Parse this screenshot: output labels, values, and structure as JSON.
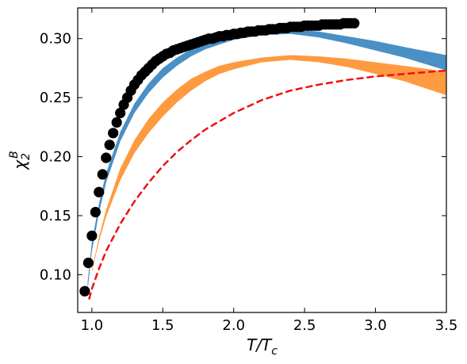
{
  "chart_data": {
    "type": "line",
    "xlabel_main": "T/T",
    "xlabel_sub": "c",
    "ylabel_main": "χ",
    "ylabel_sub": "2",
    "ylabel_sup": "B",
    "xlim": [
      0.9,
      3.5
    ],
    "ylim": [
      0.068,
      0.326
    ],
    "xticks": [
      1.0,
      1.5,
      2.0,
      2.5,
      3.0,
      3.5
    ],
    "xtick_labels": [
      "1.0",
      "1.5",
      "2.0",
      "2.5",
      "3.0",
      "3.5"
    ],
    "yticks": [
      0.1,
      0.15,
      0.2,
      0.25,
      0.3
    ],
    "ytick_labels": [
      "0.10",
      "0.15",
      "0.20",
      "0.25",
      "0.30"
    ],
    "grid": false,
    "colors": {
      "blue_band": "#4a90c4",
      "orange_band": "#ff9a40",
      "red_dashed": "#ee1111",
      "points": "#000000"
    },
    "series": [
      {
        "kind": "band",
        "color_key": "blue_band",
        "x": [
          0.97,
          1.0,
          1.05,
          1.1,
          1.2,
          1.3,
          1.4,
          1.5,
          1.6,
          1.7,
          1.8,
          1.9,
          2.0,
          2.2,
          2.4,
          2.6,
          2.8,
          3.0,
          3.2,
          3.5
        ],
        "lower": [
          0.087,
          0.12,
          0.152,
          0.178,
          0.213,
          0.237,
          0.254,
          0.267,
          0.277,
          0.285,
          0.291,
          0.295,
          0.299,
          0.303,
          0.304,
          0.301,
          0.296,
          0.29,
          0.284,
          0.273
        ],
        "upper": [
          0.094,
          0.128,
          0.16,
          0.186,
          0.221,
          0.245,
          0.262,
          0.275,
          0.284,
          0.291,
          0.296,
          0.3,
          0.303,
          0.306,
          0.308,
          0.306,
          0.302,
          0.298,
          0.293,
          0.286
        ]
      },
      {
        "kind": "band",
        "color_key": "orange_band",
        "x": [
          1.0,
          1.05,
          1.1,
          1.2,
          1.3,
          1.4,
          1.5,
          1.6,
          1.7,
          1.8,
          1.9,
          2.0,
          2.2,
          2.4,
          2.6,
          2.8,
          3.0,
          3.2,
          3.5
        ],
        "lower": [
          0.102,
          0.128,
          0.149,
          0.18,
          0.203,
          0.22,
          0.234,
          0.246,
          0.256,
          0.264,
          0.27,
          0.274,
          0.28,
          0.282,
          0.28,
          0.276,
          0.27,
          0.264,
          0.252
        ],
        "upper": [
          0.104,
          0.132,
          0.155,
          0.19,
          0.214,
          0.232,
          0.246,
          0.257,
          0.266,
          0.272,
          0.277,
          0.28,
          0.284,
          0.286,
          0.285,
          0.283,
          0.28,
          0.277,
          0.272
        ]
      },
      {
        "kind": "dashed",
        "color_key": "red_dashed",
        "x": [
          0.98,
          1.0,
          1.05,
          1.1,
          1.2,
          1.3,
          1.4,
          1.5,
          1.6,
          1.7,
          1.8,
          1.9,
          2.0,
          2.2,
          2.4,
          2.6,
          2.8,
          3.0,
          3.2,
          3.5
        ],
        "y": [
          0.079,
          0.088,
          0.105,
          0.12,
          0.143,
          0.162,
          0.178,
          0.192,
          0.204,
          0.214,
          0.223,
          0.23,
          0.237,
          0.248,
          0.256,
          0.261,
          0.265,
          0.268,
          0.27,
          0.273
        ]
      },
      {
        "kind": "points",
        "color_key": "points",
        "x": [
          0.95,
          0.975,
          1.0,
          1.025,
          1.05,
          1.075,
          1.1,
          1.125,
          1.15,
          1.175,
          1.2,
          1.225,
          1.25,
          1.275,
          1.3,
          1.325,
          1.35,
          1.375,
          1.4,
          1.425,
          1.45,
          1.475,
          1.5,
          1.525,
          1.55,
          1.575,
          1.6,
          1.625,
          1.65,
          1.675,
          1.7,
          1.725,
          1.75,
          1.775,
          1.8,
          1.825,
          1.85,
          1.875,
          1.9,
          1.925,
          1.95,
          1.975,
          2.0,
          2.025,
          2.05,
          2.075,
          2.1,
          2.125,
          2.15,
          2.175,
          2.2,
          2.225,
          2.25,
          2.275,
          2.3,
          2.325,
          2.35,
          2.375,
          2.4,
          2.425,
          2.45,
          2.475,
          2.5,
          2.525,
          2.55,
          2.575,
          2.6,
          2.625,
          2.65,
          2.675,
          2.7,
          2.725,
          2.75,
          2.775,
          2.8,
          2.825,
          2.85
        ],
        "y": [
          0.086,
          0.11,
          0.133,
          0.153,
          0.17,
          0.185,
          0.199,
          0.21,
          0.22,
          0.229,
          0.237,
          0.244,
          0.25,
          0.256,
          0.261,
          0.265,
          0.269,
          0.272,
          0.275,
          0.278,
          0.281,
          0.283,
          0.285,
          0.287,
          0.288,
          0.29,
          0.291,
          0.292,
          0.293,
          0.294,
          0.295,
          0.296,
          0.297,
          0.298,
          0.299,
          0.3,
          0.3,
          0.301,
          0.302,
          0.302,
          0.303,
          0.303,
          0.304,
          0.304,
          0.305,
          0.305,
          0.306,
          0.306,
          0.306,
          0.307,
          0.307,
          0.307,
          0.308,
          0.308,
          0.308,
          0.309,
          0.309,
          0.309,
          0.31,
          0.31,
          0.31,
          0.31,
          0.311,
          0.311,
          0.311,
          0.311,
          0.311,
          0.312,
          0.312,
          0.312,
          0.312,
          0.312,
          0.312,
          0.313,
          0.313,
          0.313,
          0.313
        ]
      }
    ]
  }
}
